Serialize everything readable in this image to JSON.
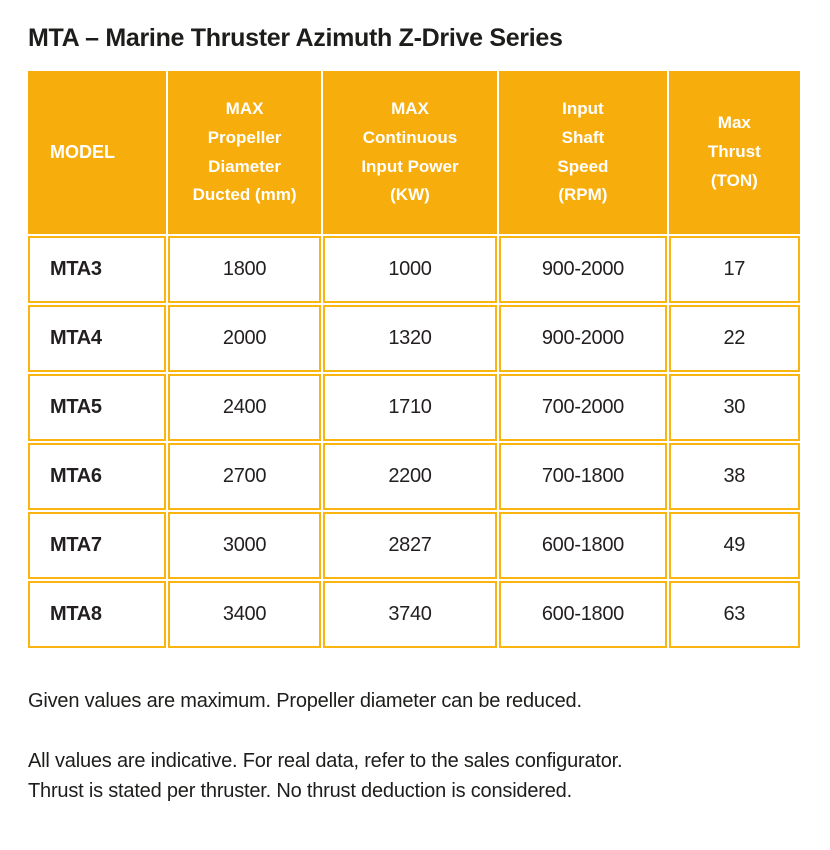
{
  "title": "MTA – Marine Thruster Azimuth Z-Drive Series",
  "colors": {
    "header_bg": "#F7AD0C",
    "grid_border": "#FBB511",
    "header_text": "#FFFFFF",
    "body_text": "#231F20"
  },
  "table": {
    "headers": [
      {
        "id": "model",
        "label": "MODEL"
      },
      {
        "id": "propeller_diameter",
        "label": "MAX\nPropeller\nDiameter\nDucted (mm)"
      },
      {
        "id": "input_power",
        "label": "MAX\nContinuous\nInput Power\n(KW)"
      },
      {
        "id": "shaft_speed",
        "label": "Input\nShaft\nSpeed\n(RPM)"
      },
      {
        "id": "max_thrust",
        "label": "Max\nThrust\n(TON)"
      }
    ],
    "rows": [
      {
        "model": "MTA3",
        "values": [
          "1800",
          "1000",
          "900-2000",
          "17"
        ]
      },
      {
        "model": "MTA4",
        "values": [
          "2000",
          "1320",
          "900-2000",
          "22"
        ]
      },
      {
        "model": "MTA5",
        "values": [
          "2400",
          "1710",
          "700-2000",
          "30"
        ]
      },
      {
        "model": "MTA6",
        "values": [
          "2700",
          "2200",
          "700-1800",
          "38"
        ]
      },
      {
        "model": "MTA7",
        "values": [
          "3000",
          "2827",
          "600-1800",
          "49"
        ]
      },
      {
        "model": "MTA8",
        "values": [
          "3400",
          "3740",
          "600-1800",
          "63"
        ]
      }
    ]
  },
  "notes": {
    "note1": "Given values are maximum. Propeller diameter can be reduced.",
    "note2": "All values are indicative. For real data, refer to the sales configurator.\nThrust is stated per thruster. No thrust deduction is considered."
  }
}
